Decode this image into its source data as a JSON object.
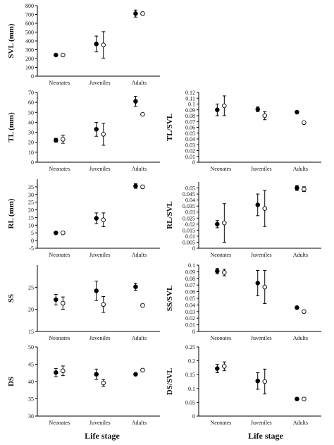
{
  "figure": {
    "xlabel_left": "Life stage",
    "xlabel_right": "Life stage",
    "colors": {
      "filled": "#000000",
      "open_stroke": "#000000",
      "open_fill": "#ffffff",
      "axis": "#000000"
    }
  },
  "chart_data": [
    {
      "id": "svl",
      "type": "scatter",
      "ylabel": "SVL (mm)",
      "categories": [
        "Neonates",
        "Juveniles",
        "Adults"
      ],
      "ylim": [
        0,
        800
      ],
      "yticks": [
        0,
        100,
        200,
        300,
        400,
        500,
        600,
        700,
        800
      ],
      "series": [
        {
          "marker": "filled",
          "values": [
            240,
            365,
            710
          ],
          "errors": [
            5,
            90,
            40
          ]
        },
        {
          "marker": "open",
          "values": [
            240,
            355,
            710
          ],
          "errors": [
            5,
            150,
            15
          ]
        }
      ]
    },
    {
      "id": "tl",
      "type": "scatter",
      "ylabel": "TL (mm)",
      "categories": [
        "Neonates",
        "Juveniles",
        "Adults"
      ],
      "ylim": [
        0,
        70
      ],
      "yticks": [
        0,
        10,
        20,
        30,
        40,
        50,
        60,
        70
      ],
      "series": [
        {
          "marker": "filled",
          "values": [
            22,
            33,
            61
          ],
          "errors": [
            2,
            7,
            5
          ]
        },
        {
          "marker": "open",
          "values": [
            23,
            28,
            48
          ],
          "errors": [
            4,
            11,
            1
          ]
        }
      ]
    },
    {
      "id": "tlsvl",
      "type": "scatter",
      "ylabel": "TL/SVL",
      "categories": [
        "Neonates",
        "Juveniles",
        "Adults"
      ],
      "ylim": [
        0,
        0.12
      ],
      "yticks": [
        "0",
        "0.01",
        "0.02",
        "0.03",
        "0.04",
        "0.05",
        "0.06",
        "0.07",
        "0.08",
        "0.09",
        "0.1",
        "0.11",
        "0.12"
      ],
      "series": [
        {
          "marker": "filled",
          "values": [
            0.09,
            0.091,
            0.086
          ],
          "errors": [
            0.01,
            0.004,
            0.002
          ]
        },
        {
          "marker": "open",
          "values": [
            0.097,
            0.08,
            0.068
          ],
          "errors": [
            0.017,
            0.007,
            0.001
          ]
        }
      ]
    },
    {
      "id": "rl",
      "type": "scatter",
      "ylabel": "RL (mm)",
      "categories": [
        "Neonates",
        "Juveniles",
        "Adults"
      ],
      "ylim": [
        -5,
        40
      ],
      "yticks": [
        -5,
        0,
        5,
        10,
        15,
        20,
        25,
        30,
        35
      ],
      "series": [
        {
          "marker": "filled",
          "values": [
            5,
            14.5,
            35.5
          ],
          "errors": [
            0.3,
            3.5,
            1.5
          ]
        },
        {
          "marker": "open",
          "values": [
            5,
            13.5,
            35
          ],
          "errors": [
            0.3,
            4.5,
            1
          ]
        }
      ]
    },
    {
      "id": "rlsvl",
      "type": "scatter",
      "ylabel": "RL/SVL",
      "categories": [
        "Neonates",
        "Juveniles",
        "Adults"
      ],
      "ylim": [
        0,
        0.055
      ],
      "yticks": [
        "0",
        "0.005",
        "0.01",
        "0.015",
        "0.02",
        "0.025",
        "0.03",
        "0.035",
        "0.04",
        "0.045",
        "0.05"
      ],
      "series": [
        {
          "marker": "filled",
          "values": [
            0.02,
            0.036,
            0.05
          ],
          "errors": [
            0.003,
            0.009,
            0.002
          ]
        },
        {
          "marker": "open",
          "values": [
            0.021,
            0.033,
            0.049
          ],
          "errors": [
            0.016,
            0.015,
            0.002
          ]
        }
      ]
    },
    {
      "id": "ss",
      "type": "scatter",
      "ylabel": "SS",
      "categories": [
        "Neonates",
        "Juveniles",
        "Adults"
      ],
      "ylim": [
        15,
        30
      ],
      "yticks": [
        15,
        20,
        25
      ],
      "series": [
        {
          "marker": "filled",
          "values": [
            22.2,
            24.2,
            25.1
          ],
          "errors": [
            1.2,
            2.2,
            0.8
          ]
        },
        {
          "marker": "open",
          "values": [
            21.4,
            21.1,
            20.9
          ],
          "errors": [
            1.4,
            1.8,
            0.3
          ]
        }
      ]
    },
    {
      "id": "sssvl",
      "type": "scatter",
      "ylabel": "SS/SVL",
      "categories": [
        "Neonates",
        "Juveniles",
        "Adults"
      ],
      "ylim": [
        0,
        0.1
      ],
      "yticks": [
        "0",
        "0.01",
        "0.02",
        "0.03",
        "0.04",
        "0.05",
        "0.06",
        "0.07",
        "0.08",
        "0.09",
        "0.1"
      ],
      "series": [
        {
          "marker": "filled",
          "values": [
            0.091,
            0.073,
            0.036
          ],
          "errors": [
            0.004,
            0.019,
            0.001
          ]
        },
        {
          "marker": "open",
          "values": [
            0.089,
            0.067,
            0.03
          ],
          "errors": [
            0.005,
            0.025,
            0.001
          ]
        }
      ]
    },
    {
      "id": "ds",
      "type": "scatter",
      "ylabel": "DS",
      "categories": [
        "Neonates",
        "Juveniles",
        "Adults"
      ],
      "ylim": [
        30,
        50
      ],
      "yticks": [
        30,
        35,
        40,
        45,
        50
      ],
      "series": [
        {
          "marker": "filled",
          "values": [
            42.6,
            42.1,
            42.1
          ],
          "errors": [
            1.2,
            1.5,
            0.4
          ]
        },
        {
          "marker": "open",
          "values": [
            43.1,
            39.6,
            43.3
          ],
          "errors": [
            1.4,
            1.0,
            0.4
          ]
        }
      ]
    },
    {
      "id": "dssvl",
      "type": "scatter",
      "ylabel": "DS/SVL",
      "categories": [
        "Neonates",
        "Juveniles",
        "Adults"
      ],
      "ylim": [
        0,
        0.25
      ],
      "yticks": [
        "0",
        "0.05",
        "0.1",
        "0.15",
        "0.2",
        "0.25"
      ],
      "series": [
        {
          "marker": "filled",
          "values": [
            0.172,
            0.127,
            0.062
          ],
          "errors": [
            0.015,
            0.03,
            0.002
          ]
        },
        {
          "marker": "open",
          "values": [
            0.18,
            0.125,
            0.062
          ],
          "errors": [
            0.016,
            0.045,
            0.002
          ]
        }
      ]
    }
  ]
}
